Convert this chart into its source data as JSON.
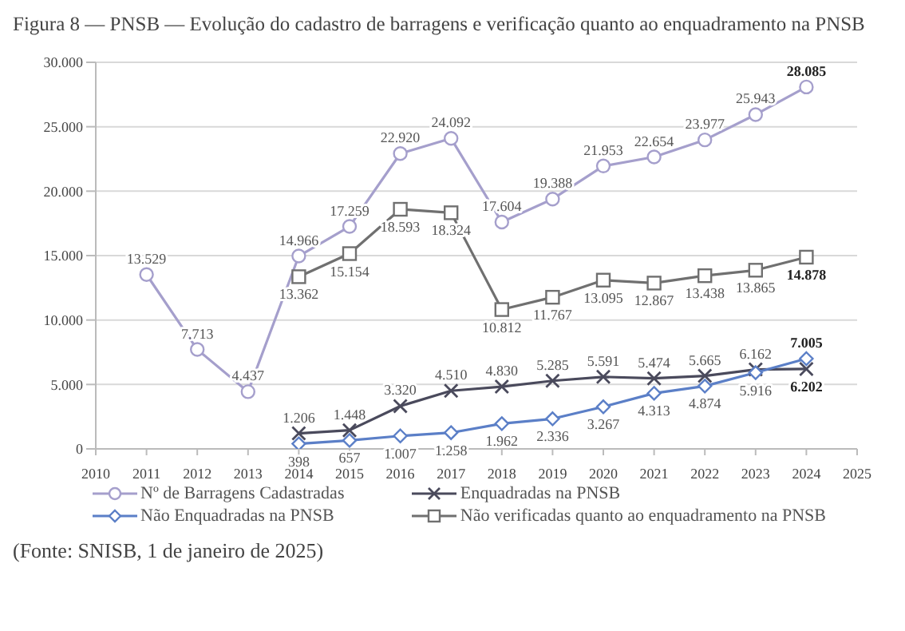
{
  "chart_data": {
    "type": "line",
    "title": "Figura 8 — PNSB — Evolução do cadastro de barragens e verificação quanto ao enquadramento na PNSB",
    "annotations": [
      "(Fonte: SNISB, 1 de janeiro de 2025)"
    ],
    "x": [
      2011,
      2012,
      2013,
      2014,
      2015,
      2016,
      2017,
      2018,
      2019,
      2020,
      2021,
      2022,
      2023,
      2024
    ],
    "series": [
      {
        "name": "Nº de Barragens Cadastradas",
        "color": "#a59fcc",
        "marker": "circle",
        "values": [
          13529,
          7713,
          4437,
          14966,
          17259,
          22920,
          24092,
          17604,
          19388,
          21953,
          22654,
          23977,
          25943,
          28085
        ],
        "value_labels": [
          "13.529",
          "7.713",
          "4.437",
          "14.966",
          "17.259",
          "22.920",
          "24.092",
          "17.604",
          "19.388",
          "21.953",
          "22.654",
          "23.977",
          "25.943",
          "28.085"
        ]
      },
      {
        "name": "Enquadradas na PNSB",
        "color": "#4a4a5c",
        "marker": "cross",
        "values": [
          null,
          null,
          null,
          1206,
          1448,
          3320,
          4510,
          4830,
          5285,
          5591,
          5474,
          5665,
          6162,
          6202
        ],
        "value_labels": [
          null,
          null,
          null,
          "1.206",
          "1.448",
          "3.320",
          "4.510",
          "4.830",
          "5.285",
          "5.591",
          "5.474",
          "5.665",
          "6.162",
          "6.202"
        ]
      },
      {
        "name": "Não Enquadradas na PNSB",
        "color": "#5b7fc7",
        "marker": "diamond",
        "values": [
          null,
          null,
          null,
          398,
          657,
          1007,
          1258,
          1962,
          2336,
          3267,
          4313,
          4874,
          5916,
          7005
        ],
        "value_labels": [
          null,
          null,
          null,
          "398",
          "657",
          "1.007",
          "1.258",
          "1.962",
          "2.336",
          "3.267",
          "4.313",
          "4.874",
          "5.916",
          "7.005"
        ]
      },
      {
        "name": "Não verificadas quanto ao enquadramento na PNSB",
        "color": "#707070",
        "marker": "square",
        "values": [
          null,
          null,
          null,
          13362,
          15154,
          18593,
          18324,
          10812,
          11767,
          13095,
          12867,
          13438,
          13865,
          14878
        ],
        "value_labels": [
          null,
          null,
          null,
          "13.362",
          "15.154",
          "18.593",
          "18.324",
          "10.812",
          "11.767",
          "13.095",
          "12.867",
          "13.438",
          "13.865",
          "14.878"
        ]
      }
    ],
    "xlim": [
      2010,
      2025
    ],
    "xticks": [
      2010,
      2011,
      2012,
      2013,
      2014,
      2015,
      2016,
      2017,
      2018,
      2019,
      2020,
      2021,
      2022,
      2023,
      2024,
      2025
    ],
    "ylim": [
      0,
      30000
    ],
    "yticks": [
      {
        "value": 0,
        "label": "0"
      },
      {
        "value": 5000,
        "label": "5.000"
      },
      {
        "value": 10000,
        "label": "10.000"
      },
      {
        "value": 15000,
        "label": "15.000"
      },
      {
        "value": 20000,
        "label": "20.000"
      },
      {
        "value": 25000,
        "label": "25.000"
      },
      {
        "value": 30000,
        "label": "30.000"
      }
    ],
    "grid": "y",
    "legend": "bottom",
    "line_style": "solid"
  }
}
